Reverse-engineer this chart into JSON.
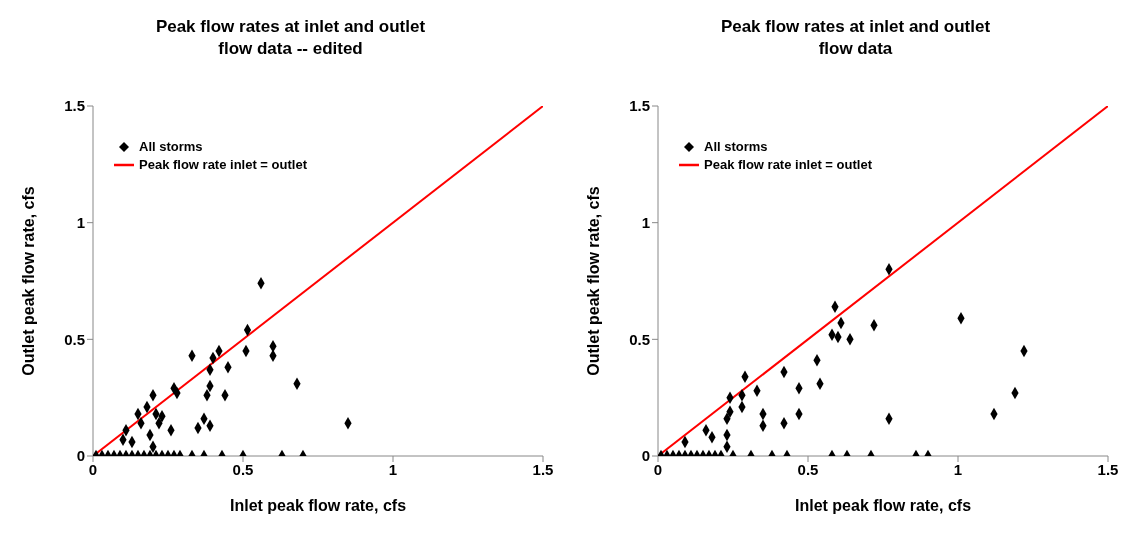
{
  "chart_data": [
    {
      "type": "scatter",
      "title": "Peak flow rates at inlet and outlet",
      "subtitle": "flow data -- edited",
      "xlabel": "Inlet peak flow rate, cfs",
      "ylabel": "Outlet peak flow rate, cfs",
      "xlim": [
        0,
        1.5
      ],
      "ylim": [
        0,
        1.5
      ],
      "xticks": [
        0,
        0.5,
        1,
        1.5
      ],
      "yticks": [
        0,
        0.5,
        1,
        1.5
      ],
      "grid": false,
      "legend": "top left",
      "series": [
        {
          "name": "All storms",
          "marker": "diamond",
          "color": "#000000",
          "x": [
            0.56,
            0.515,
            0.51,
            0.6,
            0.6,
            0.42,
            0.4,
            0.33,
            0.45,
            0.39,
            0.39,
            0.38,
            0.44,
            0.27,
            0.28,
            0.2,
            0.15,
            0.18,
            0.16,
            0.21,
            0.23,
            0.22,
            0.37,
            0.39,
            0.35,
            0.26,
            0.19,
            0.11,
            0.1,
            0.13,
            0.2,
            0.68,
            0.85,
            0.01,
            0.03,
            0.05,
            0.07,
            0.09,
            0.11,
            0.13,
            0.15,
            0.17,
            0.19,
            0.21,
            0.23,
            0.25,
            0.27,
            0.29,
            0.33,
            0.37,
            0.43,
            0.5,
            0.63,
            0.7
          ],
          "values": [
            0.74,
            0.54,
            0.45,
            0.47,
            0.43,
            0.45,
            0.42,
            0.43,
            0.38,
            0.37,
            0.3,
            0.26,
            0.26,
            0.29,
            0.27,
            0.26,
            0.18,
            0.21,
            0.14,
            0.18,
            0.17,
            0.14,
            0.16,
            0.13,
            0.12,
            0.11,
            0.09,
            0.11,
            0.07,
            0.06,
            0.04,
            0.31,
            0.14,
            0,
            0,
            0,
            0,
            0,
            0,
            0,
            0,
            0,
            0,
            0,
            0,
            0,
            0,
            0,
            0,
            0,
            0,
            0,
            0,
            0
          ]
        },
        {
          "name": "Peak flow rate inlet = outlet",
          "type": "line",
          "color": "#ff0000",
          "x": [
            0,
            1.5
          ],
          "values": [
            0,
            1.5
          ]
        }
      ]
    },
    {
      "type": "scatter",
      "title": "Peak flow rates at inlet and outlet",
      "subtitle": "flow data",
      "xlabel": "Inlet peak flow rate, cfs",
      "ylabel": "Outlet peak flow rate, cfs",
      "xlim": [
        0,
        1.5
      ],
      "ylim": [
        0,
        1.5
      ],
      "xticks": [
        0,
        0.5,
        1,
        1.5
      ],
      "yticks": [
        0,
        0.5,
        1,
        1.5
      ],
      "grid": false,
      "legend": "top left",
      "series": [
        {
          "name": "All storms",
          "marker": "diamond",
          "color": "#000000",
          "x": [
            0.59,
            0.61,
            0.58,
            0.6,
            0.53,
            0.54,
            0.47,
            0.47,
            0.42,
            0.42,
            0.33,
            0.29,
            0.28,
            0.28,
            0.24,
            0.24,
            0.23,
            0.35,
            0.35,
            0.16,
            0.18,
            0.23,
            0.23,
            0.09,
            0.77,
            1.01,
            0.72,
            0.64,
            1.22,
            1.19,
            1.12,
            0.77,
            0.01,
            0.03,
            0.05,
            0.07,
            0.09,
            0.11,
            0.13,
            0.15,
            0.17,
            0.19,
            0.21,
            0.25,
            0.31,
            0.38,
            0.43,
            0.58,
            0.63,
            0.71,
            0.86,
            0.9
          ],
          "values": [
            0.64,
            0.57,
            0.52,
            0.51,
            0.41,
            0.31,
            0.29,
            0.18,
            0.36,
            0.14,
            0.28,
            0.34,
            0.26,
            0.21,
            0.25,
            0.19,
            0.16,
            0.18,
            0.13,
            0.11,
            0.08,
            0.09,
            0.04,
            0.06,
            0.8,
            0.59,
            0.56,
            0.5,
            0.45,
            0.27,
            0.18,
            0.16,
            0,
            0,
            0,
            0,
            0,
            0,
            0,
            0,
            0,
            0,
            0,
            0,
            0,
            0,
            0,
            0,
            0,
            0,
            0,
            0
          ]
        },
        {
          "name": "Peak flow rate inlet = outlet",
          "type": "line",
          "color": "#ff0000",
          "x": [
            0,
            1.5
          ],
          "values": [
            0,
            1.5
          ]
        }
      ]
    }
  ]
}
